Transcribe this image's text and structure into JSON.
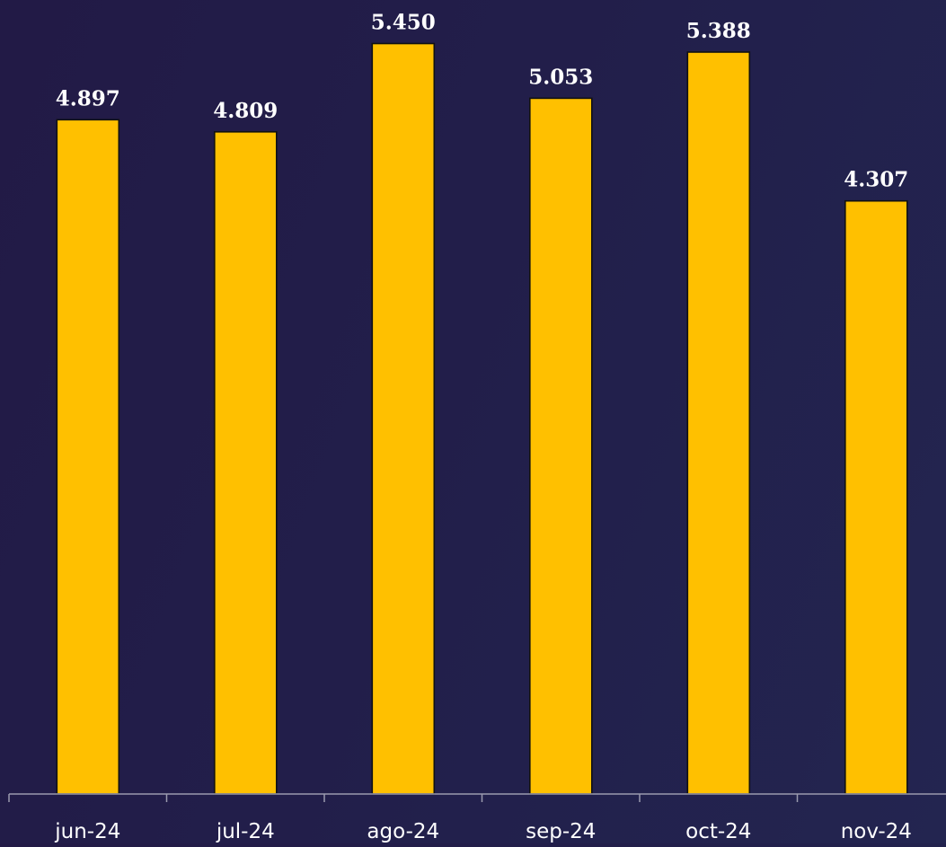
{
  "chart_data": {
    "type": "bar",
    "categories": [
      "jun-24",
      "jul-24",
      "ago-24",
      "sep-24",
      "oct-24",
      "nov-24"
    ],
    "values": [
      4.897,
      4.809,
      5.45,
      5.053,
      5.388,
      4.307
    ],
    "data_labels": [
      "4.897",
      "4.809",
      "5.450",
      "5.053",
      "5.388",
      "4.307"
    ],
    "title": "",
    "xlabel": "",
    "ylabel": "",
    "ylim": [
      0,
      5.5
    ],
    "grid": false,
    "legend": "none",
    "colors": {
      "bar": "#FFC000",
      "bar_outline": "#111111",
      "label_text": "#FFFFFF",
      "axis": "#9A9AAE",
      "background": "#221E4A"
    }
  }
}
